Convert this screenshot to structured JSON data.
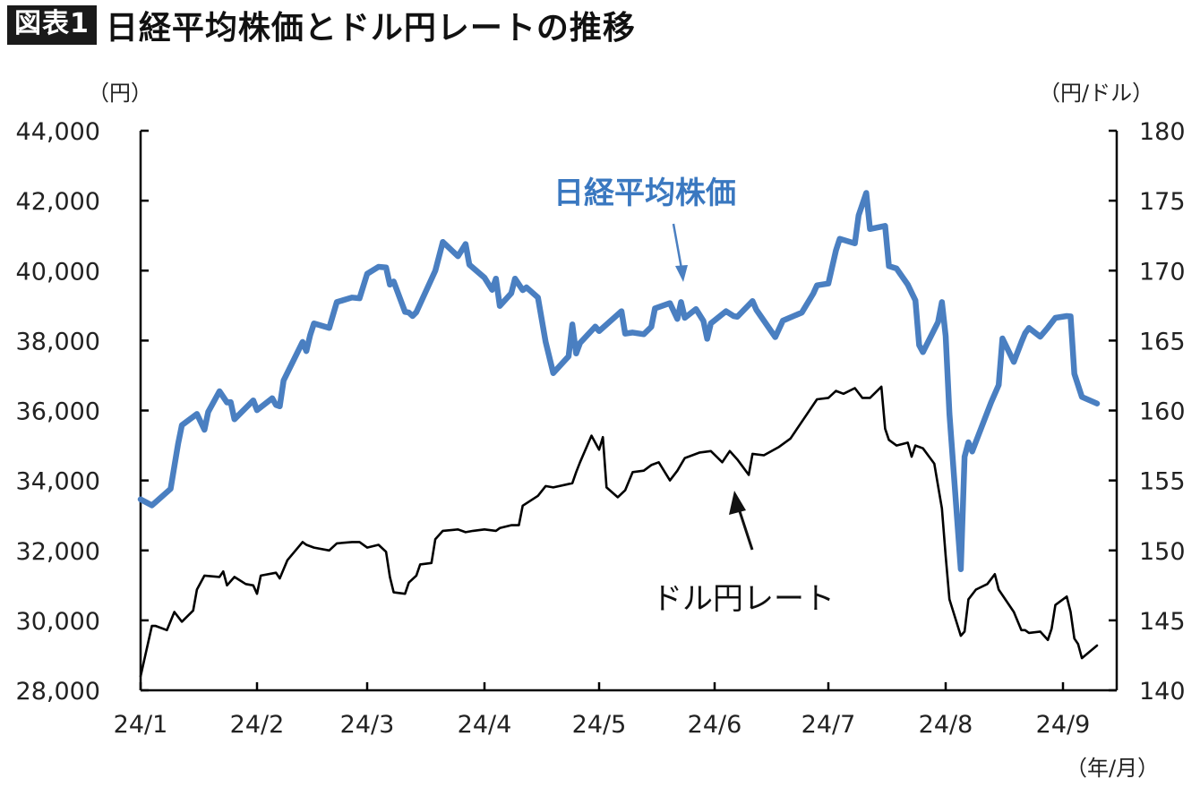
{
  "header": {
    "badge": "図表1",
    "title": "日経平均株価とドル円レートの推移"
  },
  "chart_data": {
    "type": "line",
    "title": "日経平均株価とドル円レートの推移",
    "left_unit": "（円）",
    "right_unit": "（円/ドル）",
    "x_unit": "（年/月）",
    "xlabels": [
      "24/1",
      "24/2",
      "24/3",
      "24/4",
      "24/5",
      "24/6",
      "24/7",
      "24/8",
      "24/9"
    ],
    "y_left": {
      "min": 28000,
      "max": 44000,
      "step": 2000,
      "ticks": [
        "28,000",
        "30,000",
        "32,000",
        "34,000",
        "36,000",
        "38,000",
        "40,000",
        "42,000",
        "44,000"
      ]
    },
    "y_right": {
      "min": 140,
      "max": 180,
      "step": 5,
      "ticks": [
        "140",
        "145",
        "150",
        "155",
        "160",
        "165",
        "170",
        "175",
        "180"
      ]
    },
    "grid": false,
    "colors": {
      "nikkei": "#4a7fc1",
      "usdjpy": "#000000"
    },
    "annotations": {
      "nikkei_label": "日経平均株価",
      "usdjpy_label": "ドル円レート"
    },
    "series": [
      {
        "name": "日経平均株価",
        "axis": "left",
        "points": [
          [
            "2024-01-01",
            33460
          ],
          [
            "2024-01-04",
            33290
          ],
          [
            "2024-01-05",
            33380
          ],
          [
            "2024-01-09",
            33760
          ],
          [
            "2024-01-11",
            35050
          ],
          [
            "2024-01-12",
            35580
          ],
          [
            "2024-01-16",
            35900
          ],
          [
            "2024-01-18",
            35450
          ],
          [
            "2024-01-19",
            35960
          ],
          [
            "2024-01-22",
            36550
          ],
          [
            "2024-01-24",
            36230
          ],
          [
            "2024-01-25",
            36240
          ],
          [
            "2024-01-26",
            35750
          ],
          [
            "2024-01-31",
            36290
          ],
          [
            "2024-02-01",
            36010
          ],
          [
            "2024-02-05",
            36350
          ],
          [
            "2024-02-06",
            36160
          ],
          [
            "2024-02-07",
            36120
          ],
          [
            "2024-02-08",
            36860
          ],
          [
            "2024-02-13",
            37960
          ],
          [
            "2024-02-14",
            37700
          ],
          [
            "2024-02-15",
            38160
          ],
          [
            "2024-02-16",
            38490
          ],
          [
            "2024-02-20",
            38360
          ],
          [
            "2024-02-22",
            39100
          ],
          [
            "2024-02-26",
            39230
          ],
          [
            "2024-02-28",
            39210
          ],
          [
            "2024-03-01",
            39910
          ],
          [
            "2024-03-04",
            40110
          ],
          [
            "2024-03-06",
            40090
          ],
          [
            "2024-03-07",
            39600
          ],
          [
            "2024-03-08",
            39690
          ],
          [
            "2024-03-11",
            38820
          ],
          [
            "2024-03-12",
            38800
          ],
          [
            "2024-03-13",
            38700
          ],
          [
            "2024-03-14",
            38810
          ],
          [
            "2024-03-19",
            40000
          ],
          [
            "2024-03-21",
            40820
          ],
          [
            "2024-03-25",
            40410
          ],
          [
            "2024-03-27",
            40760
          ],
          [
            "2024-03-28",
            40170
          ],
          [
            "2024-04-01",
            39800
          ],
          [
            "2024-04-03",
            39450
          ],
          [
            "2024-04-04",
            39770
          ],
          [
            "2024-04-05",
            38990
          ],
          [
            "2024-04-08",
            39350
          ],
          [
            "2024-04-09",
            39770
          ],
          [
            "2024-04-11",
            39440
          ],
          [
            "2024-04-12",
            39520
          ],
          [
            "2024-04-15",
            39230
          ],
          [
            "2024-04-17",
            37960
          ],
          [
            "2024-04-19",
            37070
          ],
          [
            "2024-04-23",
            37550
          ],
          [
            "2024-04-24",
            38460
          ],
          [
            "2024-04-25",
            37630
          ],
          [
            "2024-04-26",
            37930
          ],
          [
            "2024-04-30",
            38400
          ],
          [
            "2024-05-01",
            38270
          ],
          [
            "2024-05-07",
            38840
          ],
          [
            "2024-05-08",
            38200
          ],
          [
            "2024-05-10",
            38230
          ],
          [
            "2024-05-13",
            38180
          ],
          [
            "2024-05-15",
            38390
          ],
          [
            "2024-05-16",
            38920
          ],
          [
            "2024-05-20",
            39070
          ],
          [
            "2024-05-22",
            38620
          ],
          [
            "2024-05-23",
            39100
          ],
          [
            "2024-05-24",
            38650
          ],
          [
            "2024-05-27",
            38900
          ],
          [
            "2024-05-29",
            38560
          ],
          [
            "2024-05-30",
            38050
          ],
          [
            "2024-05-31",
            38490
          ],
          [
            "2024-06-04",
            38840
          ],
          [
            "2024-06-06",
            38700
          ],
          [
            "2024-06-07",
            38680
          ],
          [
            "2024-06-11",
            39130
          ],
          [
            "2024-06-12",
            38880
          ],
          [
            "2024-06-17",
            38100
          ],
          [
            "2024-06-19",
            38570
          ],
          [
            "2024-06-24",
            38800
          ],
          [
            "2024-06-27",
            39340
          ],
          [
            "2024-06-28",
            39580
          ],
          [
            "2024-07-01",
            39630
          ],
          [
            "2024-07-03",
            40580
          ],
          [
            "2024-07-04",
            40910
          ],
          [
            "2024-07-08",
            40780
          ],
          [
            "2024-07-09",
            41580
          ],
          [
            "2024-07-11",
            42220
          ],
          [
            "2024-07-12",
            41190
          ],
          [
            "2024-07-16",
            41280
          ],
          [
            "2024-07-17",
            40130
          ],
          [
            "2024-07-19",
            40060
          ],
          [
            "2024-07-22",
            39600
          ],
          [
            "2024-07-24",
            39150
          ],
          [
            "2024-07-25",
            37870
          ],
          [
            "2024-07-26",
            37670
          ],
          [
            "2024-07-30",
            38530
          ],
          [
            "2024-07-31",
            39100
          ],
          [
            "2024-08-01",
            38130
          ],
          [
            "2024-08-02",
            35910
          ],
          [
            "2024-08-05",
            31460
          ],
          [
            "2024-08-06",
            34680
          ],
          [
            "2024-08-07",
            35090
          ],
          [
            "2024-08-08",
            34830
          ],
          [
            "2024-08-13",
            36230
          ],
          [
            "2024-08-15",
            36730
          ],
          [
            "2024-08-16",
            38060
          ],
          [
            "2024-08-19",
            37390
          ],
          [
            "2024-08-21",
            37950
          ],
          [
            "2024-08-22",
            38210
          ],
          [
            "2024-08-23",
            38360
          ],
          [
            "2024-08-26",
            38110
          ],
          [
            "2024-08-28",
            38370
          ],
          [
            "2024-08-30",
            38650
          ],
          [
            "2024-09-02",
            38700
          ],
          [
            "2024-09-03",
            38690
          ],
          [
            "2024-09-04",
            37050
          ],
          [
            "2024-09-06",
            36390
          ],
          [
            "2024-09-10",
            36200
          ]
        ]
      },
      {
        "name": "ドル円レート",
        "axis": "right",
        "points": [
          [
            "2024-01-01",
            141.0
          ],
          [
            "2024-01-02",
            142.2
          ],
          [
            "2024-01-04",
            144.6
          ],
          [
            "2024-01-05",
            144.6
          ],
          [
            "2024-01-08",
            144.3
          ],
          [
            "2024-01-10",
            145.6
          ],
          [
            "2024-01-12",
            144.9
          ],
          [
            "2024-01-15",
            145.7
          ],
          [
            "2024-01-16",
            147.2
          ],
          [
            "2024-01-18",
            148.2
          ],
          [
            "2024-01-22",
            148.1
          ],
          [
            "2024-01-23",
            148.5
          ],
          [
            "2024-01-24",
            147.5
          ],
          [
            "2024-01-26",
            148.1
          ],
          [
            "2024-01-29",
            147.6
          ],
          [
            "2024-01-31",
            147.5
          ],
          [
            "2024-02-01",
            146.9
          ],
          [
            "2024-02-02",
            148.2
          ],
          [
            "2024-02-06",
            148.4
          ],
          [
            "2024-02-07",
            148.0
          ],
          [
            "2024-02-09",
            149.3
          ],
          [
            "2024-02-13",
            150.6
          ],
          [
            "2024-02-14",
            150.4
          ],
          [
            "2024-02-16",
            150.2
          ],
          [
            "2024-02-20",
            150.0
          ],
          [
            "2024-02-22",
            150.5
          ],
          [
            "2024-02-26",
            150.6
          ],
          [
            "2024-02-28",
            150.6
          ],
          [
            "2024-03-01",
            150.2
          ],
          [
            "2024-03-04",
            150.4
          ],
          [
            "2024-03-06",
            149.9
          ],
          [
            "2024-03-07",
            148.1
          ],
          [
            "2024-03-08",
            147.0
          ],
          [
            "2024-03-11",
            146.9
          ],
          [
            "2024-03-12",
            147.7
          ],
          [
            "2024-03-14",
            148.2
          ],
          [
            "2024-03-15",
            149.0
          ],
          [
            "2024-03-18",
            149.1
          ],
          [
            "2024-03-19",
            150.8
          ],
          [
            "2024-03-21",
            151.4
          ],
          [
            "2024-03-25",
            151.5
          ],
          [
            "2024-03-27",
            151.3
          ],
          [
            "2024-03-29",
            151.4
          ],
          [
            "2024-04-01",
            151.5
          ],
          [
            "2024-04-04",
            151.4
          ],
          [
            "2024-04-05",
            151.6
          ],
          [
            "2024-04-08",
            151.8
          ],
          [
            "2024-04-10",
            151.8
          ],
          [
            "2024-04-11",
            153.2
          ],
          [
            "2024-04-15",
            153.9
          ],
          [
            "2024-04-17",
            154.6
          ],
          [
            "2024-04-19",
            154.5
          ],
          [
            "2024-04-24",
            154.8
          ],
          [
            "2024-04-25",
            155.6
          ],
          [
            "2024-04-26",
            156.3
          ],
          [
            "2024-04-29",
            158.2
          ],
          [
            "2024-05-01",
            157.2
          ],
          [
            "2024-05-02",
            158.1
          ],
          [
            "2024-05-03",
            154.5
          ],
          [
            "2024-05-06",
            153.8
          ],
          [
            "2024-05-08",
            154.3
          ],
          [
            "2024-05-10",
            155.6
          ],
          [
            "2024-05-13",
            155.7
          ],
          [
            "2024-05-15",
            156.1
          ],
          [
            "2024-05-17",
            156.3
          ],
          [
            "2024-05-20",
            155.0
          ],
          [
            "2024-05-22",
            155.7
          ],
          [
            "2024-05-24",
            156.6
          ],
          [
            "2024-05-28",
            157.0
          ],
          [
            "2024-05-31",
            157.1
          ],
          [
            "2024-06-03",
            156.3
          ],
          [
            "2024-06-05",
            157.1
          ],
          [
            "2024-06-07",
            156.5
          ],
          [
            "2024-06-10",
            155.4
          ],
          [
            "2024-06-11",
            156.9
          ],
          [
            "2024-06-14",
            156.8
          ],
          [
            "2024-06-18",
            157.4
          ],
          [
            "2024-06-21",
            158.0
          ],
          [
            "2024-06-25",
            159.6
          ],
          [
            "2024-06-28",
            160.8
          ],
          [
            "2024-07-01",
            160.9
          ],
          [
            "2024-07-03",
            161.4
          ],
          [
            "2024-07-05",
            161.2
          ],
          [
            "2024-07-08",
            161.6
          ],
          [
            "2024-07-10",
            160.9
          ],
          [
            "2024-07-12",
            160.9
          ],
          [
            "2024-07-15",
            161.7
          ],
          [
            "2024-07-16",
            158.7
          ],
          [
            "2024-07-17",
            157.9
          ],
          [
            "2024-07-19",
            157.5
          ],
          [
            "2024-07-22",
            157.7
          ],
          [
            "2024-07-23",
            156.7
          ],
          [
            "2024-07-24",
            157.5
          ],
          [
            "2024-07-26",
            157.3
          ],
          [
            "2024-07-29",
            156.2
          ],
          [
            "2024-07-31",
            153.0
          ],
          [
            "2024-08-01",
            149.6
          ],
          [
            "2024-08-02",
            146.5
          ],
          [
            "2024-08-05",
            143.9
          ],
          [
            "2024-08-06",
            144.2
          ],
          [
            "2024-08-07",
            146.5
          ],
          [
            "2024-08-09",
            147.2
          ],
          [
            "2024-08-12",
            147.6
          ],
          [
            "2024-08-14",
            148.3
          ],
          [
            "2024-08-15",
            147.2
          ],
          [
            "2024-08-19",
            145.6
          ],
          [
            "2024-08-21",
            144.3
          ],
          [
            "2024-08-22",
            144.3
          ],
          [
            "2024-08-23",
            144.1
          ],
          [
            "2024-08-26",
            144.2
          ],
          [
            "2024-08-28",
            143.6
          ],
          [
            "2024-08-29",
            144.4
          ],
          [
            "2024-08-30",
            146.1
          ],
          [
            "2024-09-02",
            146.7
          ],
          [
            "2024-09-03",
            145.6
          ],
          [
            "2024-09-04",
            143.7
          ],
          [
            "2024-09-05",
            143.3
          ],
          [
            "2024-09-06",
            142.3
          ],
          [
            "2024-09-10",
            143.2
          ]
        ]
      }
    ]
  }
}
